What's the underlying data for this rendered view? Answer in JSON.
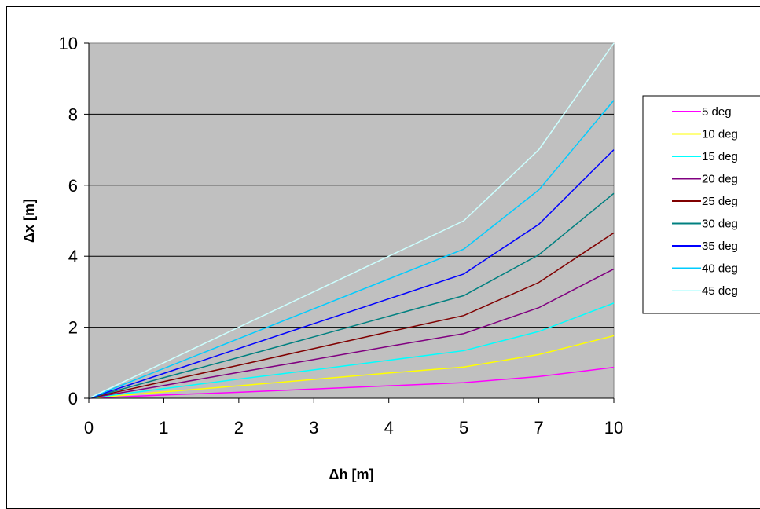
{
  "chart_data": {
    "type": "line",
    "categories": [
      "0",
      "1",
      "2",
      "3",
      "4",
      "5",
      "7",
      "10"
    ],
    "xlabel": "Δh [m]",
    "ylabel": "Δx [m]",
    "ylim": [
      0,
      10
    ],
    "yticks": [
      "0",
      "2",
      "4",
      "6",
      "8",
      "10"
    ],
    "grid": true,
    "legend_position": "right",
    "plot_background": "#c0c0c0",
    "series": [
      {
        "name": "5 deg",
        "color": "#ff00ff",
        "values": [
          0,
          0.09,
          0.17,
          0.26,
          0.35,
          0.44,
          0.61,
          0.87
        ]
      },
      {
        "name": "10 deg",
        "color": "#ffff00",
        "values": [
          0,
          0.18,
          0.35,
          0.53,
          0.71,
          0.88,
          1.23,
          1.76
        ]
      },
      {
        "name": "15 deg",
        "color": "#00ffff",
        "values": [
          0,
          0.27,
          0.54,
          0.8,
          1.07,
          1.34,
          1.88,
          2.68
        ]
      },
      {
        "name": "20 deg",
        "color": "#800080",
        "values": [
          0,
          0.36,
          0.73,
          1.09,
          1.46,
          1.82,
          2.55,
          3.64
        ]
      },
      {
        "name": "25 deg",
        "color": "#800000",
        "values": [
          0,
          0.47,
          0.93,
          1.4,
          1.87,
          2.33,
          3.26,
          4.66
        ]
      },
      {
        "name": "30 deg",
        "color": "#008080",
        "values": [
          0,
          0.58,
          1.15,
          1.73,
          2.31,
          2.89,
          4.04,
          5.77
        ]
      },
      {
        "name": "35 deg",
        "color": "#0000ff",
        "values": [
          0,
          0.7,
          1.4,
          2.1,
          2.8,
          3.5,
          4.9,
          7.0
        ]
      },
      {
        "name": "40 deg",
        "color": "#00ccff",
        "values": [
          0,
          0.84,
          1.68,
          2.52,
          3.36,
          4.2,
          5.87,
          8.39
        ]
      },
      {
        "name": "45 deg",
        "color": "#ccffff",
        "values": [
          0,
          1.0,
          2.0,
          3.0,
          4.0,
          5.0,
          7.0,
          10.0
        ]
      }
    ]
  }
}
